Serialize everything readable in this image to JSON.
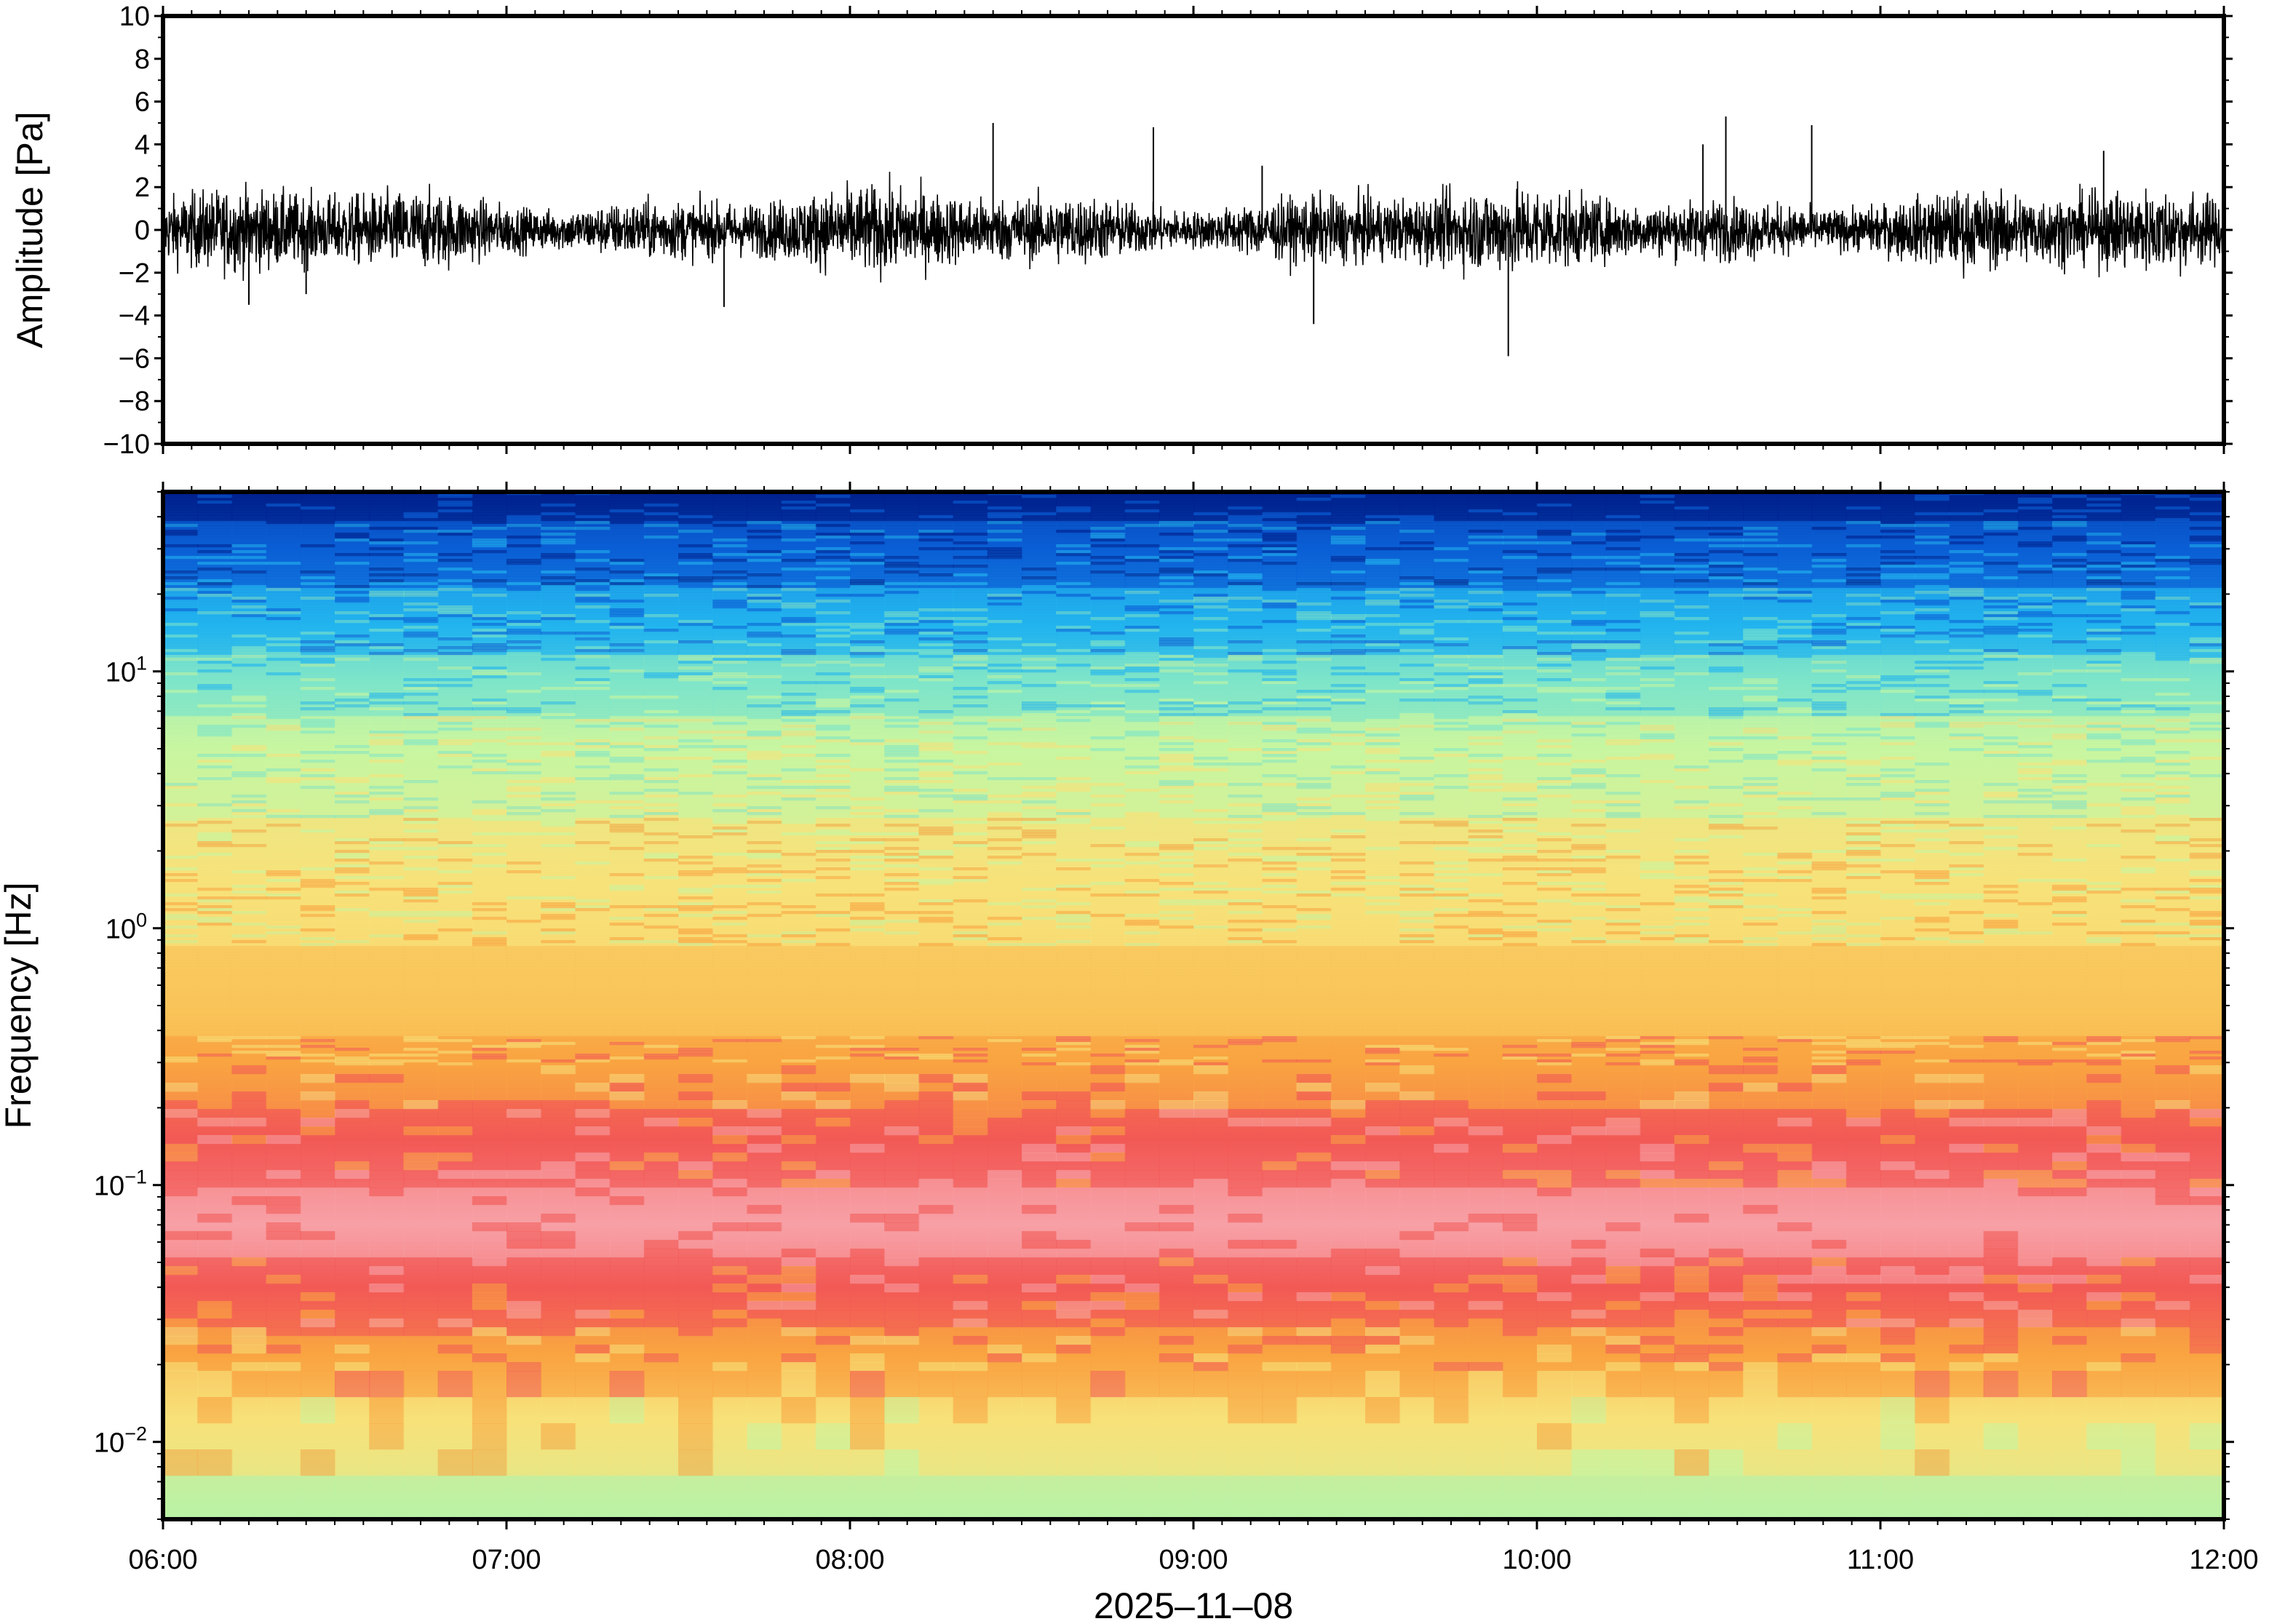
{
  "chart_data": [
    {
      "type": "line",
      "panel": "waveform",
      "title": "",
      "xlabel": "",
      "ylabel": "Amplitude [Pa]",
      "ylim": [
        -10,
        10
      ],
      "yticks": [
        10,
        8,
        6,
        4,
        2,
        0,
        -2,
        -4,
        -6,
        -8,
        -10
      ],
      "ytick_labels": [
        "10",
        "8",
        "6",
        "4",
        "2",
        "0",
        "−2",
        "−4",
        "−6",
        "−8",
        "−10"
      ],
      "xlim": [
        "06:00",
        "12:00"
      ],
      "series": [
        {
          "color": "#000000",
          "typical_envelope": 1.3,
          "spikes": [
            {
              "time": "06:15",
              "value": -3.5
            },
            {
              "time": "06:25",
              "value": -3.0
            },
            {
              "time": "07:38",
              "value": -3.6
            },
            {
              "time": "08:25",
              "value": 5.0
            },
            {
              "time": "08:53",
              "value": 4.8
            },
            {
              "time": "09:12",
              "value": 3.0
            },
            {
              "time": "09:21",
              "value": -4.4
            },
            {
              "time": "09:55",
              "value": -5.9
            },
            {
              "time": "10:29",
              "value": 4.0
            },
            {
              "time": "10:33",
              "value": 5.3
            },
            {
              "time": "10:48",
              "value": 4.9
            },
            {
              "time": "11:39",
              "value": 3.7
            }
          ]
        }
      ],
      "grid": false
    },
    {
      "type": "heatmap",
      "panel": "spectrogram",
      "title": "",
      "xlabel": "2025–11–08",
      "ylabel": "Frequency [Hz]",
      "xticks": [
        "06:00",
        "07:00",
        "08:00",
        "09:00",
        "10:00",
        "11:00",
        "12:00"
      ],
      "yscale": "log",
      "ylim": [
        0.005,
        50
      ],
      "yticks": [
        {
          "value": 10,
          "base": "10",
          "exp": "1"
        },
        {
          "value": 1,
          "base": "10",
          "exp": "0"
        },
        {
          "value": 0.1,
          "base": "10",
          "exp": "−1"
        },
        {
          "value": 0.01,
          "base": "10",
          "exp": "−2"
        }
      ],
      "colormap": [
        "#00208c",
        "#0b5fd6",
        "#22b4ee",
        "#7fe6c8",
        "#c8f5a0",
        "#f7e27a",
        "#f9a441",
        "#f25a56",
        "#f7a0a6"
      ],
      "bands": [
        {
          "freq": 50,
          "color": "#00208c"
        },
        {
          "freq": 30,
          "color": "#0b5fd6"
        },
        {
          "freq": 15,
          "color": "#22b4ee"
        },
        {
          "freq": 9,
          "color": "#7fe6c8"
        },
        {
          "freq": 5,
          "color": "#c8f5a0"
        },
        {
          "freq": 1.5,
          "color": "#f7e27a"
        },
        {
          "freq": 0.5,
          "color": "#f9c45a"
        },
        {
          "freq": 0.3,
          "color": "#f9a441"
        },
        {
          "freq": 0.15,
          "color": "#f25a56"
        },
        {
          "freq": 0.07,
          "color": "#f7a0a6"
        },
        {
          "freq": 0.04,
          "color": "#f25a56"
        },
        {
          "freq": 0.022,
          "color": "#f9a441"
        },
        {
          "freq": 0.012,
          "color": "#f7e27a"
        },
        {
          "freq": 0.005,
          "color": "#b9f2a6"
        }
      ],
      "grid": false
    }
  ]
}
